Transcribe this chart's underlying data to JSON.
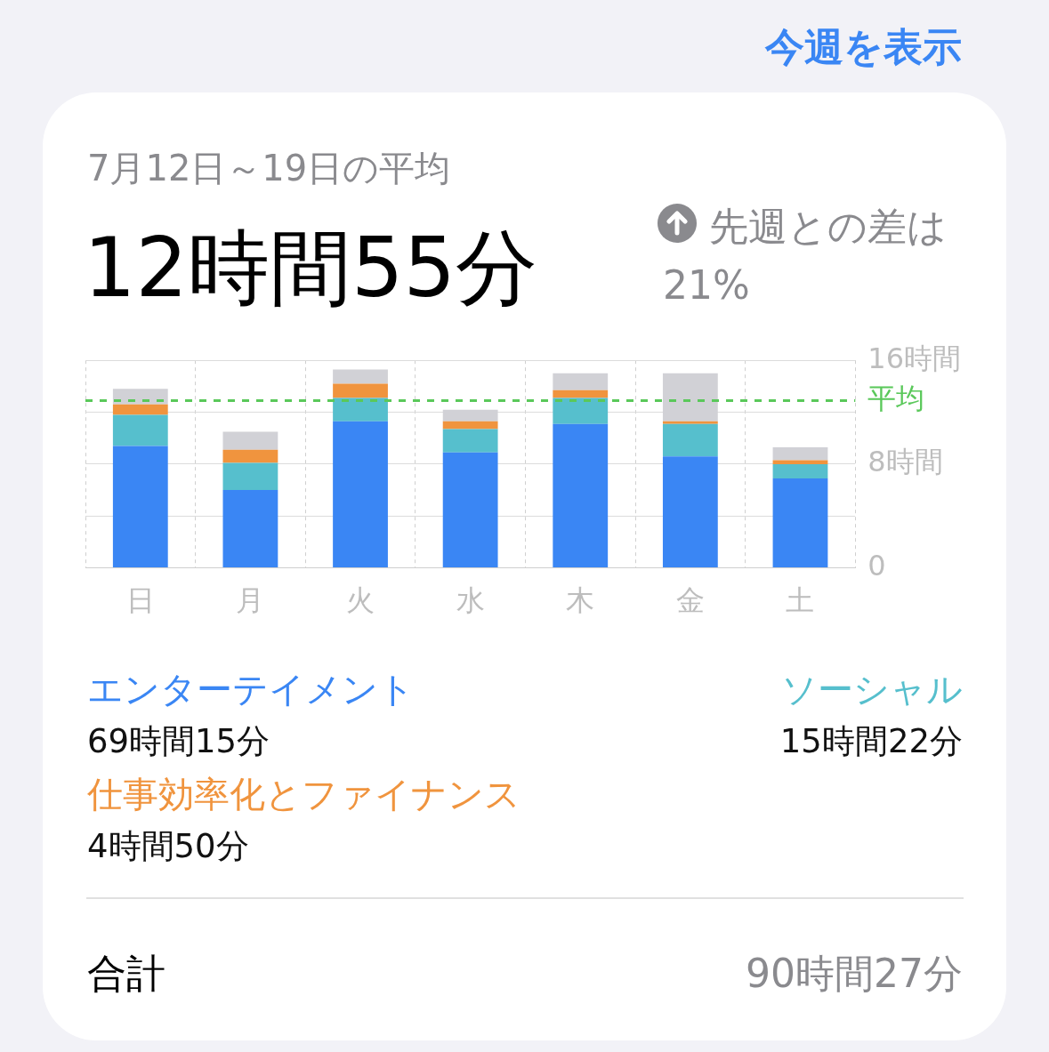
{
  "chart_data": {
    "type": "bar",
    "title": "12時間55分",
    "subtitle": "7月12日～19日の平均",
    "categories": [
      "日",
      "月",
      "火",
      "水",
      "木",
      "金",
      "土"
    ],
    "stacked": true,
    "series": [
      {
        "name": "エンターテイメント",
        "color": "#3a86f4",
        "values": [
          9.4,
          6.0,
          11.3,
          8.9,
          11.1,
          8.6,
          6.9
        ]
      },
      {
        "name": "ソーシャル",
        "color": "#56bfcd",
        "values": [
          2.4,
          2.1,
          1.8,
          1.8,
          2.0,
          2.5,
          1.1
        ]
      },
      {
        "name": "仕事効率化とファイナンス",
        "color": "#f0943e",
        "values": [
          0.8,
          1.0,
          1.1,
          0.6,
          0.6,
          0.2,
          0.3
        ]
      },
      {
        "color": "#d1d1d6",
        "values": [
          1.2,
          1.4,
          1.1,
          0.9,
          1.3,
          3.7,
          1.0
        ]
      }
    ],
    "ylim": [
      0,
      16
    ],
    "yticks": [
      0,
      {
        "value": 4,
        "label": null
      },
      {
        "value": 8,
        "label": "8時間"
      },
      {
        "value": 12,
        "label": null
      },
      {
        "value": 16,
        "label": "16時間"
      }
    ],
    "grid": true,
    "legend": "bottom",
    "ref_lines": [
      {
        "axis": "y",
        "value": 12.9,
        "label": "平均",
        "color": "#5ac85a",
        "line_style": "dashed"
      }
    ],
    "annotations": [
      "今週を表示",
      "先週との差は 21%",
      "69時間15分",
      "15時間22分",
      "4時間50分",
      "合計",
      "90時間27分"
    ]
  }
}
